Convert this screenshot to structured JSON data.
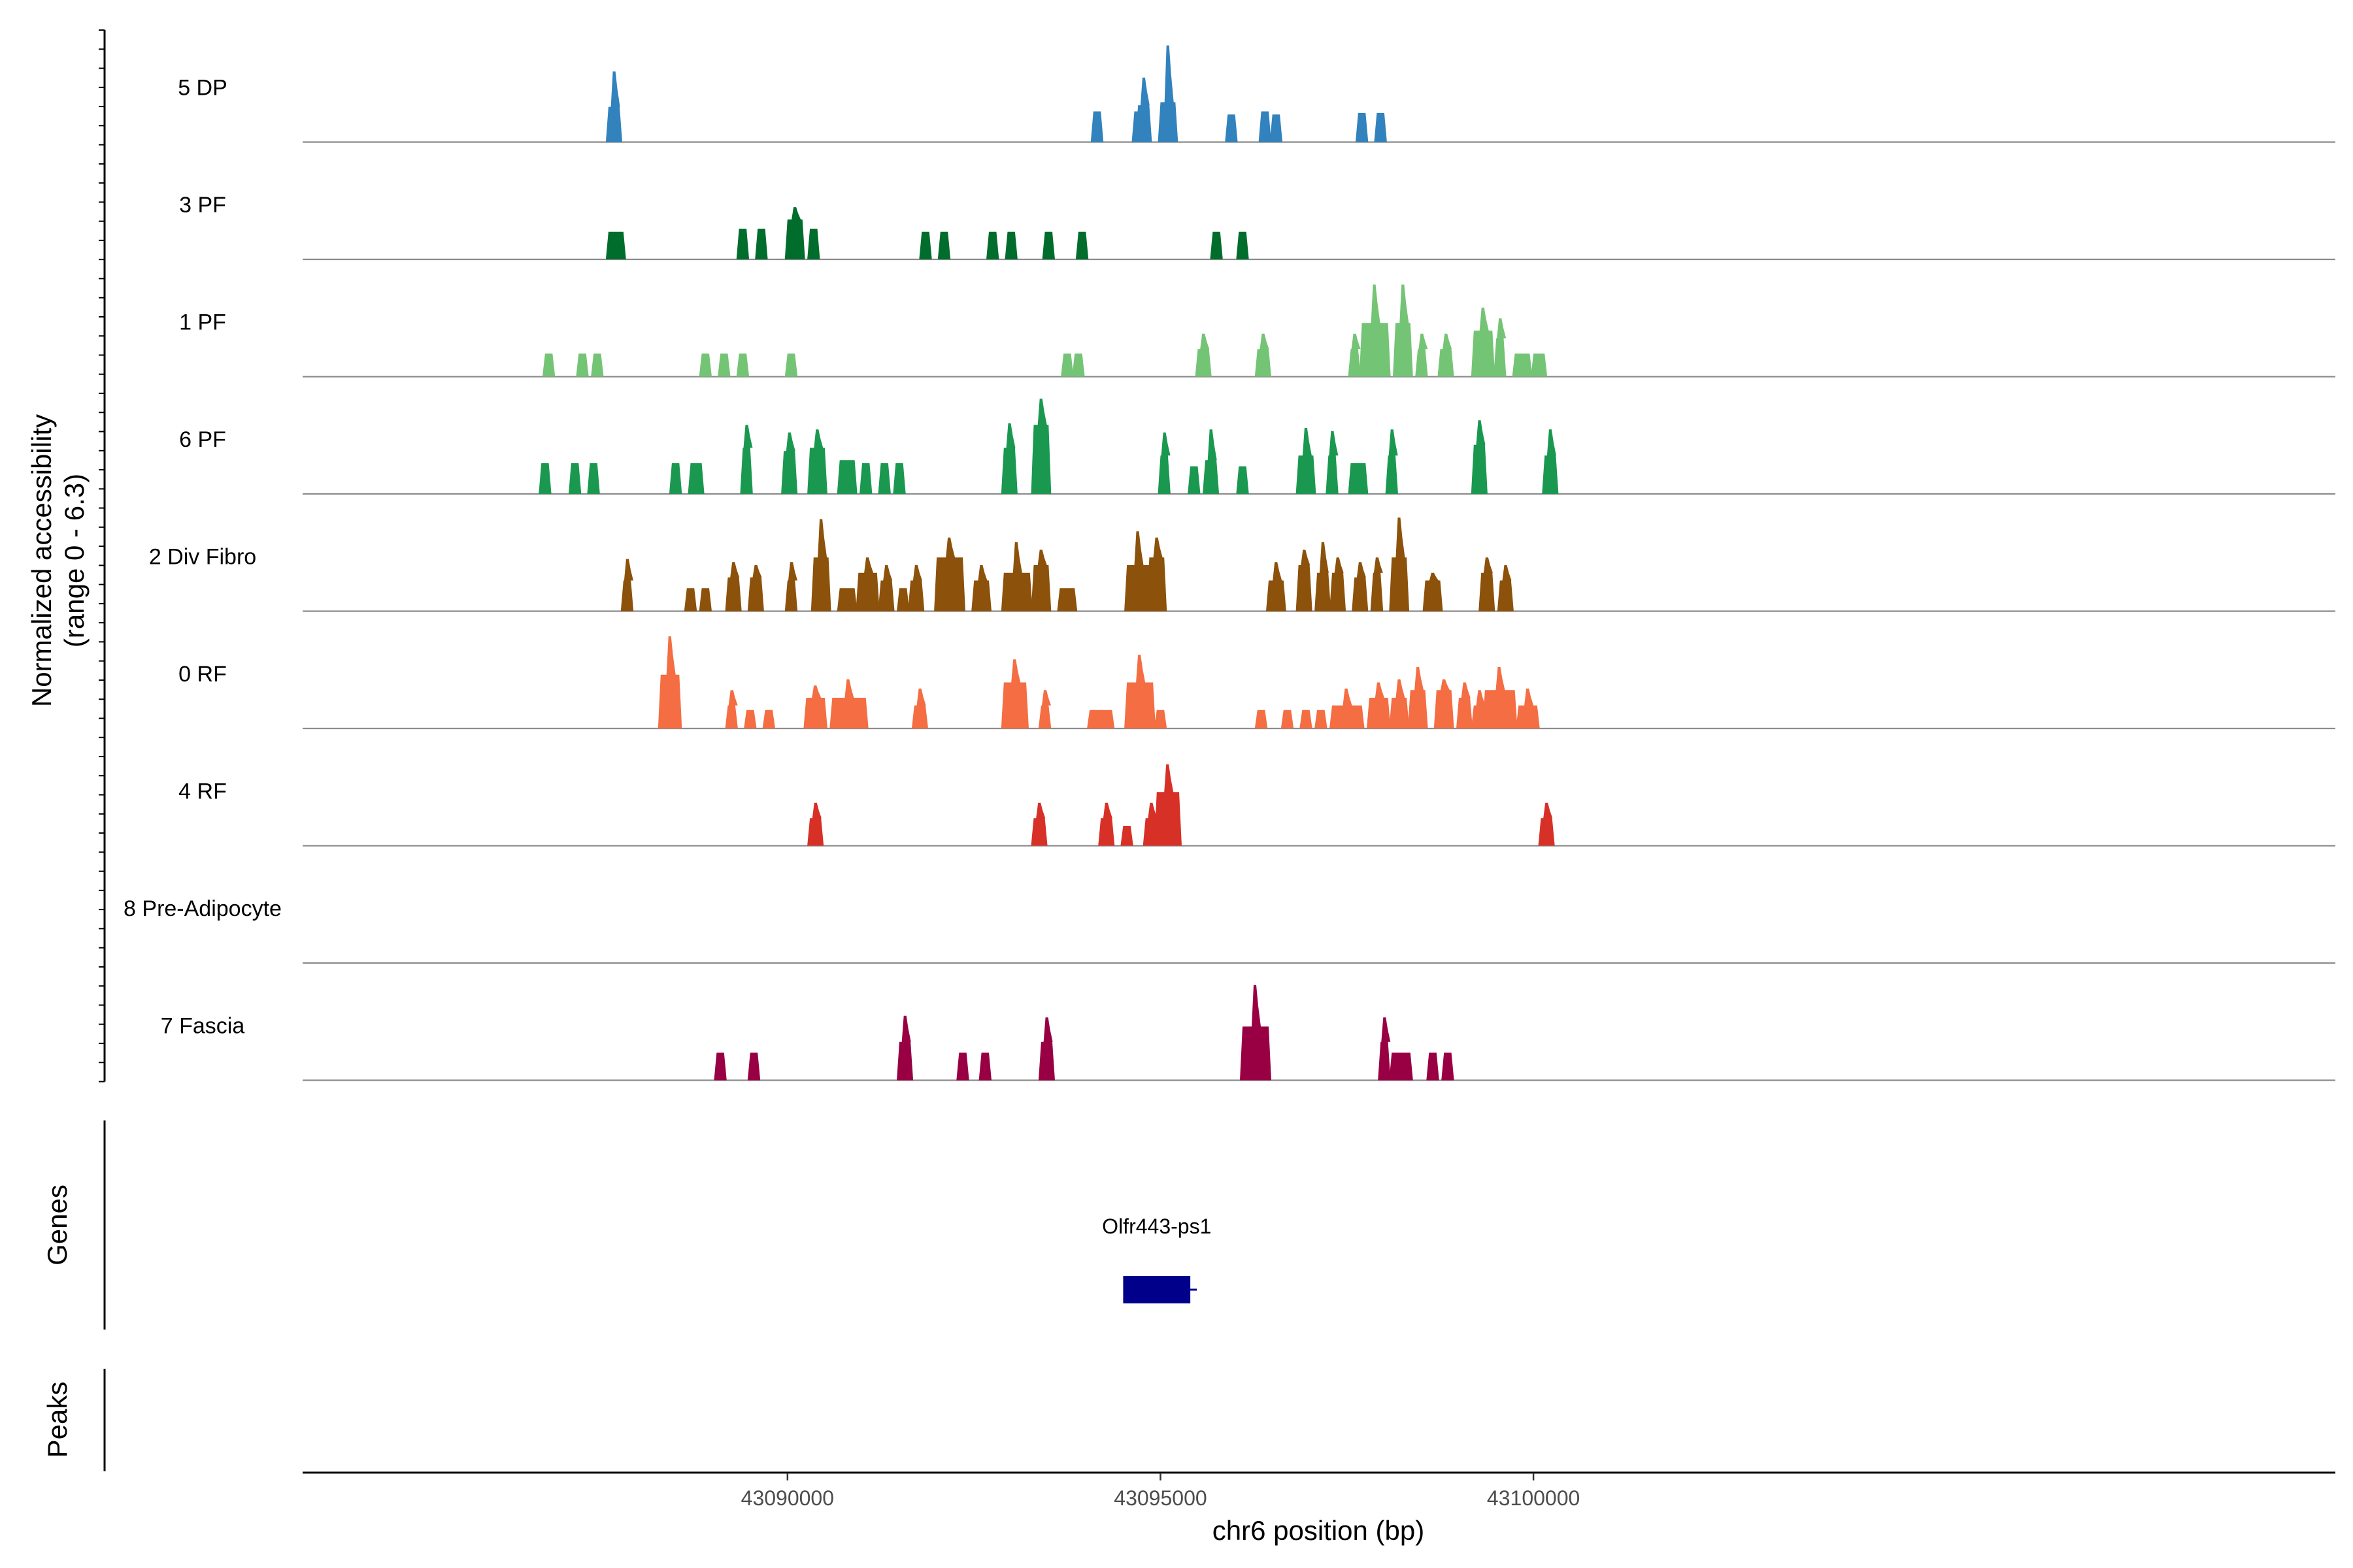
{
  "chart_data": {
    "type": "area",
    "title": "",
    "chromosome": "chr6",
    "xlabel": "chr6 position (bp)",
    "ylabel": "Normalized accessibility",
    "ylabel_range": "(range 0 - 6.3)",
    "ylim": [
      0,
      6.3
    ],
    "xlim": [
      43083500,
      43110750
    ],
    "x_ticks": [
      43090000,
      43095000,
      43100000
    ],
    "x_tick_labels": [
      "43090000",
      "43095000",
      "43100000"
    ],
    "tracks": [
      {
        "name": "5 DP",
        "color": "#3182bd",
        "peaks": [
          [
            43087600,
            43087750,
            2.3,
            4.6
          ],
          [
            43094100,
            43094200,
            2.0,
            2.0
          ],
          [
            43094650,
            43094750,
            2.0,
            2.0
          ],
          [
            43094700,
            43094850,
            2.4,
            4.2
          ],
          [
            43095000,
            43095200,
            2.6,
            6.3
          ],
          [
            43095900,
            43096000,
            1.8,
            1.8
          ],
          [
            43096350,
            43096450,
            2.0,
            2.0
          ],
          [
            43096500,
            43096600,
            1.8,
            1.8
          ],
          [
            43097650,
            43097750,
            1.9,
            1.9
          ],
          [
            43097900,
            43098000,
            1.9,
            1.9
          ]
        ]
      },
      {
        "name": "3 PF",
        "color": "#006d2c",
        "peaks": [
          [
            43087600,
            43087800,
            1.8,
            1.8
          ],
          [
            43089350,
            43089450,
            2.0,
            2.0
          ],
          [
            43089600,
            43089700,
            2.0,
            2.0
          ],
          [
            43090000,
            43090200,
            2.6,
            3.4
          ],
          [
            43090300,
            43090400,
            2.0,
            2.0
          ],
          [
            43091800,
            43091900,
            1.8,
            1.8
          ],
          [
            43092050,
            43092150,
            1.8,
            1.8
          ],
          [
            43092700,
            43092800,
            1.8,
            1.8
          ],
          [
            43092950,
            43093050,
            1.8,
            1.8
          ],
          [
            43093450,
            43093550,
            1.8,
            1.8
          ],
          [
            43093900,
            43094000,
            1.8,
            1.8
          ],
          [
            43095700,
            43095800,
            1.8,
            1.8
          ],
          [
            43096050,
            43096150,
            1.8,
            1.8
          ]
        ]
      },
      {
        "name": "1 PF",
        "color": "#74c476",
        "peaks": [
          [
            43086750,
            43086850,
            1.5,
            1.5
          ],
          [
            43087200,
            43087300,
            1.5,
            1.5
          ],
          [
            43087400,
            43087500,
            1.5,
            1.5
          ],
          [
            43088850,
            43088950,
            1.5,
            1.5
          ],
          [
            43089100,
            43089200,
            1.5,
            1.5
          ],
          [
            43089350,
            43089450,
            1.5,
            1.5
          ],
          [
            43090000,
            43090100,
            1.5,
            1.5
          ],
          [
            43093700,
            43093800,
            1.5,
            1.5
          ],
          [
            43093850,
            43093950,
            1.5,
            1.5
          ],
          [
            43095500,
            43095650,
            1.8,
            2.8
          ],
          [
            43096300,
            43096450,
            1.8,
            2.8
          ],
          [
            43097550,
            43097650,
            1.8,
            2.8
          ],
          [
            43097700,
            43098050,
            3.5,
            6.0
          ],
          [
            43098150,
            43098350,
            3.5,
            6.0
          ],
          [
            43098450,
            43098550,
            1.8,
            2.8
          ],
          [
            43098750,
            43098900,
            1.8,
            2.8
          ],
          [
            43099200,
            43099450,
            3.0,
            4.5
          ],
          [
            43099500,
            43099600,
            2.5,
            3.8
          ],
          [
            43099750,
            43099950,
            1.5,
            1.5
          ],
          [
            43100000,
            43100150,
            1.5,
            1.5
          ]
        ]
      },
      {
        "name": "6 PF",
        "color": "#1a9850",
        "peaks": [
          [
            43086700,
            43086800,
            2.0,
            2.0
          ],
          [
            43087100,
            43087200,
            2.0,
            2.0
          ],
          [
            43087350,
            43087450,
            2.0,
            2.0
          ],
          [
            43088450,
            43088550,
            2.0,
            2.0
          ],
          [
            43088700,
            43088850,
            2.0,
            2.0
          ],
          [
            43089400,
            43089500,
            3.0,
            4.5
          ],
          [
            43089950,
            43090100,
            2.8,
            4.0
          ],
          [
            43090300,
            43090500,
            3.0,
            4.2
          ],
          [
            43090700,
            43090900,
            2.2,
            2.2
          ],
          [
            43091000,
            43091100,
            2.0,
            2.0
          ],
          [
            43091250,
            43091350,
            2.0,
            2.0
          ],
          [
            43091450,
            43091550,
            2.0,
            2.0
          ],
          [
            43092900,
            43093050,
            3.0,
            4.6
          ],
          [
            43093300,
            43093500,
            4.5,
            6.2
          ],
          [
            43095000,
            43095100,
            2.5,
            4.0
          ],
          [
            43095400,
            43095500,
            1.8,
            1.8
          ],
          [
            43095600,
            43095750,
            2.2,
            4.2
          ],
          [
            43096050,
            43096150,
            1.8,
            1.8
          ],
          [
            43096850,
            43097050,
            2.5,
            4.3
          ],
          [
            43097250,
            43097350,
            2.5,
            4.1
          ],
          [
            43097550,
            43097750,
            2.0,
            2.0
          ],
          [
            43098050,
            43098150,
            2.5,
            4.2
          ],
          [
            43099200,
            43099350,
            3.2,
            4.8
          ],
          [
            43100150,
            43100300,
            2.5,
            4.2
          ]
        ]
      },
      {
        "name": "2 Div Fibro",
        "color": "#8c510a",
        "peaks": [
          [
            43087800,
            43087900,
            2.0,
            3.4
          ],
          [
            43088650,
            43088750,
            1.5,
            1.5
          ],
          [
            43088850,
            43088950,
            1.5,
            1.5
          ],
          [
            43089200,
            43089350,
            2.2,
            3.2
          ],
          [
            43089500,
            43089650,
            2.2,
            3.0
          ],
          [
            43090000,
            43090100,
            2.0,
            3.2
          ],
          [
            43090350,
            43090550,
            3.5,
            6.0
          ],
          [
            43090700,
            43090900,
            1.5,
            1.5
          ],
          [
            43090950,
            43091200,
            2.5,
            3.5
          ],
          [
            43091250,
            43091400,
            2.0,
            3.0
          ],
          [
            43091500,
            43091600,
            1.5,
            1.5
          ],
          [
            43091650,
            43091800,
            2.0,
            3.0
          ],
          [
            43092000,
            43092350,
            3.5,
            4.8
          ],
          [
            43092500,
            43092700,
            2.0,
            3.0
          ],
          [
            43092900,
            43093250,
            2.5,
            4.5
          ],
          [
            43093300,
            43093500,
            3.0,
            4.0
          ],
          [
            43093650,
            43093850,
            1.5,
            1.5
          ],
          [
            43094550,
            43094850,
            3.0,
            5.2
          ],
          [
            43094850,
            43095050,
            3.5,
            4.8
          ],
          [
            43096450,
            43096650,
            2.0,
            3.2
          ],
          [
            43096850,
            43097000,
            3.0,
            4.0
          ],
          [
            43097100,
            43097250,
            2.5,
            4.5
          ],
          [
            43097300,
            43097450,
            2.5,
            3.5
          ],
          [
            43097600,
            43097750,
            2.2,
            3.2
          ],
          [
            43097850,
            43097950,
            2.5,
            3.5
          ],
          [
            43098100,
            43098300,
            3.5,
            6.1
          ],
          [
            43098550,
            43098750,
            2.0,
            2.5
          ],
          [
            43099300,
            43099450,
            2.5,
            3.5
          ],
          [
            43099550,
            43099700,
            2.0,
            3.0
          ]
        ]
      },
      {
        "name": "0 RF",
        "color": "#f46d43",
        "peaks": [
          [
            43088300,
            43088550,
            3.5,
            6.0
          ],
          [
            43089200,
            43089300,
            1.5,
            2.5
          ],
          [
            43089450,
            43089550,
            1.2,
            1.2
          ],
          [
            43089700,
            43089800,
            1.2,
            1.2
          ],
          [
            43090250,
            43090500,
            2.0,
            2.8
          ],
          [
            43090600,
            43091050,
            2.0,
            3.2
          ],
          [
            43091700,
            43091850,
            1.5,
            2.6
          ],
          [
            43092900,
            43093200,
            3.0,
            4.5
          ],
          [
            43093400,
            43093500,
            1.5,
            2.5
          ],
          [
            43094050,
            43094350,
            1.2,
            1.2
          ],
          [
            43094550,
            43094900,
            3.0,
            4.8
          ],
          [
            43094950,
            43095050,
            1.2,
            1.2
          ],
          [
            43096300,
            43096400,
            1.2,
            1.2
          ],
          [
            43096650,
            43096750,
            1.2,
            1.2
          ],
          [
            43096900,
            43097000,
            1.2,
            1.2
          ],
          [
            43097100,
            43097200,
            1.2,
            1.2
          ],
          [
            43097300,
            43097700,
            1.5,
            2.6
          ],
          [
            43097800,
            43098050,
            2.0,
            3.0
          ],
          [
            43098100,
            43098300,
            2.0,
            3.2
          ],
          [
            43098350,
            43098550,
            2.5,
            4.0
          ],
          [
            43098700,
            43098900,
            2.5,
            3.2
          ],
          [
            43099000,
            43099150,
            2.0,
            3.0
          ],
          [
            43099200,
            43099350,
            1.5,
            2.5
          ],
          [
            43099350,
            43099750,
            2.5,
            4.0
          ],
          [
            43099800,
            43100050,
            1.5,
            2.6
          ]
        ]
      },
      {
        "name": "4 RF",
        "color": "#d73027",
        "peaks": [
          [
            43090300,
            43090450,
            1.8,
            2.8
          ],
          [
            43093300,
            43093450,
            1.8,
            2.8
          ],
          [
            43094200,
            43094350,
            1.8,
            2.8
          ],
          [
            43094500,
            43094600,
            1.3,
            1.3
          ],
          [
            43094800,
            43094950,
            1.8,
            2.8
          ],
          [
            43094950,
            43095250,
            3.5,
            5.3
          ],
          [
            43100100,
            43100250,
            1.8,
            2.8
          ]
        ]
      },
      {
        "name": "8 Pre-Adipocyte",
        "color": "#fd8d3c",
        "peaks": []
      },
      {
        "name": "7 Fascia",
        "color": "#980043",
        "peaks": [
          [
            43089050,
            43089150,
            1.8,
            1.8
          ],
          [
            43089500,
            43089600,
            1.8,
            1.8
          ],
          [
            43091500,
            43091650,
            2.5,
            4.2
          ],
          [
            43092300,
            43092400,
            1.8,
            1.8
          ],
          [
            43092600,
            43092700,
            1.8,
            1.8
          ],
          [
            43093400,
            43093550,
            2.5,
            4.1
          ],
          [
            43096100,
            43096450,
            3.5,
            6.2
          ],
          [
            43097950,
            43098050,
            2.5,
            4.1
          ],
          [
            43098100,
            43098350,
            1.8,
            1.8
          ],
          [
            43098600,
            43098700,
            1.8,
            1.8
          ],
          [
            43098800,
            43098900,
            1.8,
            1.8
          ]
        ]
      }
    ],
    "genes_panel": {
      "label": "Genes",
      "genes": [
        {
          "name": "Olfr443-ps1",
          "start": 43094500,
          "end": 43095400,
          "color": "#00008b"
        }
      ]
    },
    "peaks_panel": {
      "label": "Peaks"
    }
  }
}
